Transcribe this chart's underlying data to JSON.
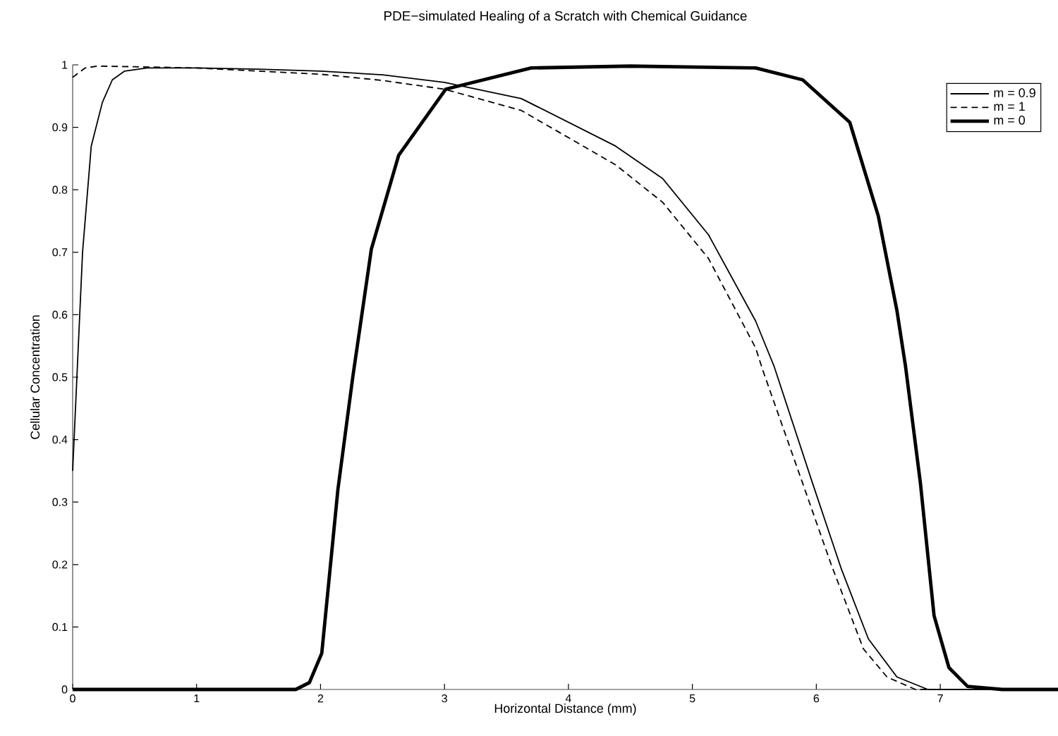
{
  "chart_data": {
    "type": "line",
    "title": "PDE−simulated Healing of a Scratch with Chemical Guidance",
    "xlabel": "Horizontal Distance (mm)",
    "ylabel": "Cellular Concentration",
    "xlim": [
      0,
      7.95
    ],
    "ylim": [
      0,
      1.0
    ],
    "xticks": [
      0,
      1,
      2,
      3,
      4,
      5,
      6,
      7
    ],
    "yticks": [
      0,
      0.1,
      0.2,
      0.3,
      0.4,
      0.5,
      0.6,
      0.7,
      0.8,
      0.9,
      1
    ],
    "grid": false,
    "legend": "top right",
    "marker": "none",
    "series": [
      {
        "name": "m = 0.9",
        "color": "#000000",
        "line_style": "solid",
        "x": [
          0,
          0.08,
          0.15,
          0.24,
          0.32,
          0.42,
          0.6,
          1.0,
          1.5,
          2.0,
          2.5,
          3.0,
          3.62,
          4.38,
          4.76,
          5.13,
          5.51,
          5.66,
          5.97,
          6.2,
          6.42,
          6.65,
          6.9,
          7.95
        ],
        "values": [
          0.35,
          0.7,
          0.87,
          0.94,
          0.976,
          0.99,
          0.995,
          0.995,
          0.993,
          0.99,
          0.984,
          0.972,
          0.946,
          0.87,
          0.818,
          0.728,
          0.59,
          0.517,
          0.33,
          0.194,
          0.081,
          0.02,
          0,
          0
        ]
      },
      {
        "name": "m = 1",
        "color": "#000000",
        "line_style": "dashed",
        "x": [
          0,
          0.1,
          0.2,
          0.5,
          1.0,
          1.5,
          2.0,
          2.5,
          3.0,
          3.62,
          4.38,
          4.76,
          5.13,
          5.51,
          5.57,
          5.89,
          6.12,
          6.38,
          6.57,
          6.8,
          7.95
        ],
        "values": [
          0.98,
          0.995,
          0.998,
          0.997,
          0.995,
          0.99,
          0.985,
          0.975,
          0.961,
          0.927,
          0.84,
          0.78,
          0.69,
          0.547,
          0.51,
          0.33,
          0.2,
          0.065,
          0.02,
          0,
          0
        ]
      },
      {
        "name": "m = 0",
        "color": "#000000",
        "line_style": "solid",
        "x": [
          0,
          1.0,
          1.8,
          1.91,
          2.01,
          2.14,
          2.26,
          2.41,
          2.63,
          3.01,
          3.7,
          4.5,
          5.51,
          5.89,
          6.27,
          6.5,
          6.65,
          6.72,
          6.84,
          6.95,
          7.07,
          7.22,
          7.5,
          7.95
        ],
        "values": [
          0,
          0,
          0,
          0.011,
          0.058,
          0.32,
          0.5,
          0.705,
          0.855,
          0.961,
          0.995,
          0.998,
          0.995,
          0.976,
          0.908,
          0.758,
          0.607,
          0.517,
          0.33,
          0.118,
          0.035,
          0.005,
          0,
          0
        ]
      }
    ]
  }
}
